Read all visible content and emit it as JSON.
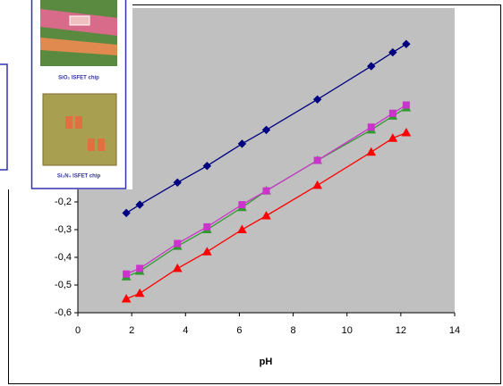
{
  "chart_data": {
    "type": "line",
    "x_label": "pH",
    "x": [
      1.8,
      2.3,
      3.7,
      4.8,
      6.1,
      7.0,
      8.9,
      10.9,
      11.7,
      12.2
    ],
    "series": [
      {
        "color": "#000080",
        "marker": "diamond",
        "values": [
          -0.24,
          -0.21,
          -0.13,
          -0.07,
          0.01,
          0.06,
          0.17,
          0.29,
          0.34,
          0.37
        ]
      },
      {
        "color": "#339933",
        "marker": "triangle",
        "values": [
          -0.47,
          -0.45,
          -0.36,
          -0.3,
          -0.22,
          -0.16,
          -0.05,
          0.06,
          0.11,
          0.14
        ]
      },
      {
        "color": "#cc33cc",
        "marker": "square",
        "values": [
          -0.46,
          -0.44,
          -0.35,
          -0.29,
          -0.21,
          -0.16,
          -0.05,
          0.07,
          0.12,
          0.15
        ]
      },
      {
        "color": "#ff0000",
        "marker": "triangle",
        "values": [
          -0.55,
          -0.53,
          -0.44,
          -0.38,
          -0.3,
          -0.25,
          -0.14,
          -0.02,
          0.03,
          0.05
        ]
      }
    ],
    "xlim": [
      0,
      14
    ],
    "xticks": [
      0,
      2,
      4,
      6,
      8,
      10,
      12,
      14
    ],
    "ylim": [
      -0.6,
      0.5
    ],
    "yticks": [
      {
        "value": -0.6,
        "label": "-0,6"
      },
      {
        "value": -0.5,
        "label": "-0,5"
      },
      {
        "value": -0.4,
        "label": "-0,4"
      },
      {
        "value": -0.3,
        "label": "-0,3"
      },
      {
        "value": -0.2,
        "label": "-0,2"
      }
    ],
    "plot_color": "#c0c0c0"
  },
  "inset": {
    "captions": [
      "SiO₂ ISFET chip",
      "Si₃N₄ ISFET chip"
    ]
  }
}
